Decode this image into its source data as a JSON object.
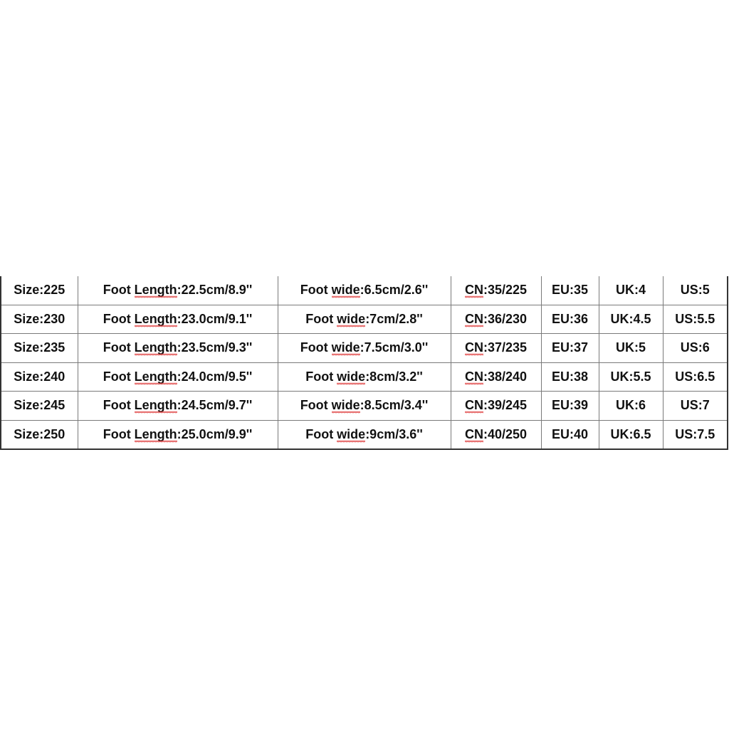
{
  "size_chart": {
    "rows": [
      {
        "size": "Size:225",
        "foot_length": "Foot Length:22.5cm/8.9''",
        "foot_wide": "Foot wide:6.5cm/2.6''",
        "cn": "CN:35/225",
        "eu": "EU:35",
        "uk": "UK:4",
        "us": "US:5"
      },
      {
        "size": "Size:230",
        "foot_length": "Foot Length:23.0cm/9.1''",
        "foot_wide": "Foot wide:7cm/2.8''",
        "cn": "CN:36/230",
        "eu": "EU:36",
        "uk": "UK:4.5",
        "us": "US:5.5"
      },
      {
        "size": "Size:235",
        "foot_length": "Foot Length:23.5cm/9.3''",
        "foot_wide": "Foot wide:7.5cm/3.0''",
        "cn": "CN:37/235",
        "eu": "EU:37",
        "uk": "UK:5",
        "us": "US:6"
      },
      {
        "size": "Size:240",
        "foot_length": "Foot Length:24.0cm/9.5''",
        "foot_wide": "Foot wide:8cm/3.2''",
        "cn": "CN:38/240",
        "eu": "EU:38",
        "uk": "UK:5.5",
        "us": "US:6.5"
      },
      {
        "size": "Size:245",
        "foot_length": "Foot Length:24.5cm/9.7''",
        "foot_wide": "Foot wide:8.5cm/3.4''",
        "cn": "CN:39/245",
        "eu": "EU:39",
        "uk": "UK:6",
        "us": "US:7"
      },
      {
        "size": "Size:250",
        "foot_length": "Foot Length:25.0cm/9.9''",
        "foot_wide": "Foot wide:9cm/3.6''",
        "cn": "CN:40/250",
        "eu": "EU:40",
        "uk": "UK:6.5",
        "us": "US:7.5"
      }
    ]
  }
}
